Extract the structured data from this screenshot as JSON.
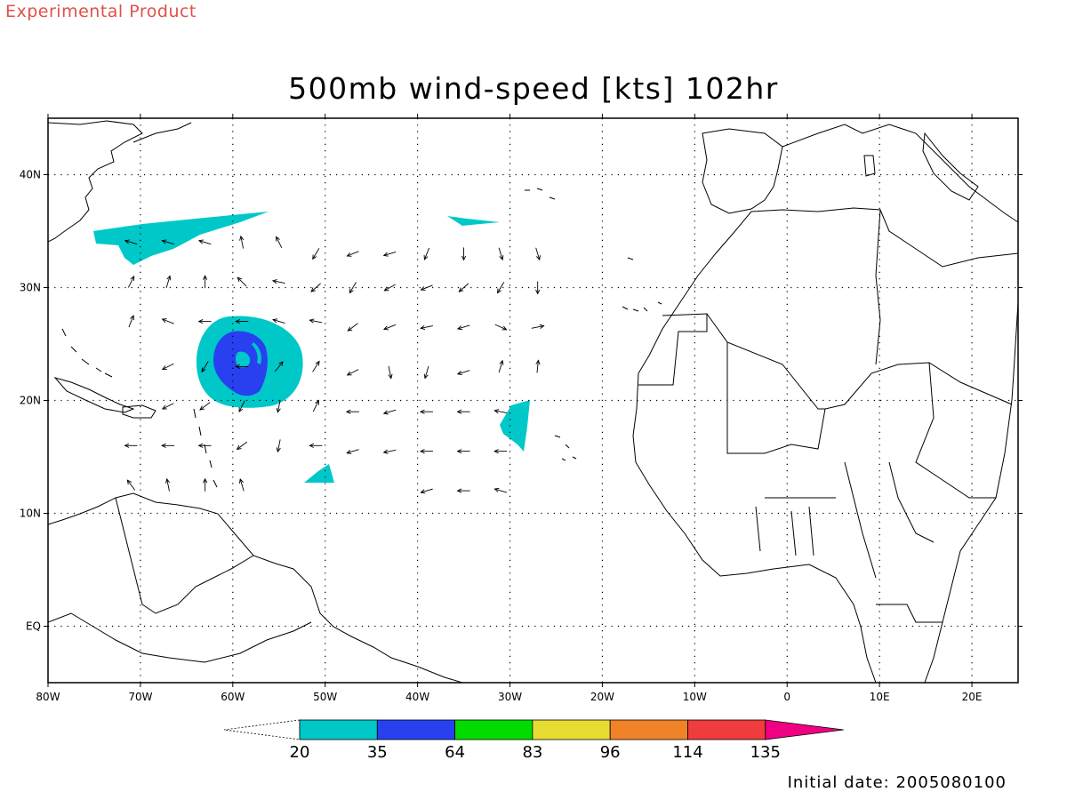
{
  "header": {
    "product_label": "Experimental Product",
    "title": "500mb wind-speed [kts] 102hr"
  },
  "footer": {
    "initial_date": "Initial date: 2005080100"
  },
  "map": {
    "projection": "lat-lon",
    "lon_range": [
      -80,
      25
    ],
    "lat_range": [
      -5,
      45
    ],
    "lon_ticks": [
      {
        "value": -80,
        "label": "80W"
      },
      {
        "value": -70,
        "label": "70W"
      },
      {
        "value": -60,
        "label": "60W"
      },
      {
        "value": -50,
        "label": "50W"
      },
      {
        "value": -40,
        "label": "40W"
      },
      {
        "value": -30,
        "label": "30W"
      },
      {
        "value": -20,
        "label": "20W"
      },
      {
        "value": -10,
        "label": "10W"
      },
      {
        "value": 0,
        "label": "0"
      },
      {
        "value": 10,
        "label": "10E"
      },
      {
        "value": 20,
        "label": "20E"
      }
    ],
    "lat_ticks": [
      {
        "value": 40,
        "label": "40N"
      },
      {
        "value": 30,
        "label": "30N"
      },
      {
        "value": 20,
        "label": "20N"
      },
      {
        "value": 10,
        "label": "10N"
      },
      {
        "value": 0,
        "label": "EQ"
      }
    ],
    "grid": "dotted",
    "colors": {
      "land_outline": "#000000",
      "grid": "#000000"
    }
  },
  "colorbar": {
    "levels": [
      "20",
      "35",
      "64",
      "83",
      "96",
      "114",
      "135"
    ],
    "colors": [
      "#00c8c8",
      "#2840f0",
      "#00dc00",
      "#e6dc32",
      "#f08228",
      "#f03c3c",
      "#f00082"
    ]
  }
}
